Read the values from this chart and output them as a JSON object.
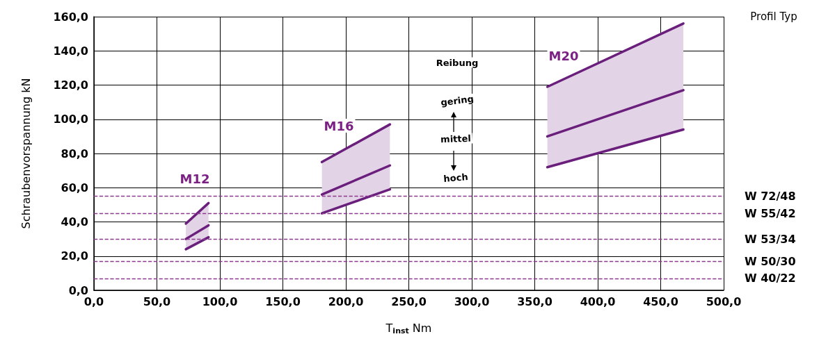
{
  "chart_data": {
    "type": "line",
    "xlabel": "T$_{inst}$ Nm",
    "ylabel": "Schraubenvorspannung kN",
    "series": [
      {
        "color": "#6b1f7c",
        "x": [
          73,
          91
        ],
        "values": [
          39,
          51
        ]
      },
      {
        "color": "#6b1f7c",
        "x": [
          73,
          91
        ],
        "values": [
          30,
          38
        ],
        "lower": [
          24,
          31
        ],
        "upper": [
          39,
          51
        ]
      },
      {
        "color": "#6b1f7c",
        "x": [
          73,
          91
        ],
        "values": [
          24,
          31
        ]
      },
      {
        "color": "#6b1f7c",
        "x": [
          181,
          235
        ],
        "values": [
          75,
          97
        ]
      },
      {
        "color": "#6b1f7c",
        "x": [
          181,
          235
        ],
        "values": [
          56,
          73
        ],
        "lower": [
          45,
          59
        ],
        "upper": [
          75,
          97
        ]
      },
      {
        "color": "#6b1f7c",
        "x": [
          181,
          235
        ],
        "values": [
          45,
          59
        ]
      },
      {
        "color": "#6b1f7c",
        "x": [
          360,
          468
        ],
        "values": [
          119,
          156
        ]
      },
      {
        "color": "#6b1f7c",
        "x": [
          360,
          468
        ],
        "values": [
          90,
          117
        ],
        "lower": [
          72,
          94
        ],
        "upper": [
          119,
          156
        ]
      },
      {
        "color": "#6b1f7c",
        "x": [
          360,
          468
        ],
        "values": [
          72,
          94
        ]
      }
    ],
    "xlim": [
      0,
      500
    ],
    "xticks": [
      {
        "value": 0,
        "label": "0,0"
      },
      {
        "value": 50,
        "label": "50,0"
      },
      {
        "value": 100,
        "label": "100,0"
      },
      {
        "value": 150,
        "label": "150,0"
      },
      {
        "value": 200,
        "label": "200,0"
      },
      {
        "value": 250,
        "label": "250,0"
      },
      {
        "value": 300,
        "label": "300,0"
      },
      {
        "value": 350,
        "label": "350,0"
      },
      {
        "value": 400,
        "label": "400,0"
      },
      {
        "value": 450,
        "label": "450,0"
      },
      {
        "value": 500,
        "label": "500,0"
      }
    ],
    "ylim": [
      0,
      160
    ],
    "yticks": [
      {
        "value": 0,
        "label": "0,0"
      },
      {
        "value": 20,
        "label": "20,0"
      },
      {
        "value": 40,
        "label": "40,0"
      },
      {
        "value": 60,
        "label": "60,0"
      },
      {
        "value": 80,
        "label": "80,0"
      },
      {
        "value": 100,
        "label": "100,0"
      },
      {
        "value": 120,
        "label": "120,0"
      },
      {
        "value": 140,
        "label": "140,0"
      },
      {
        "value": 160,
        "label": "160,0"
      }
    ],
    "grid": true,
    "marker": "none",
    "line_style": "solid",
    "ref_lines": [
      {
        "axis": "y",
        "value": 55,
        "label": "W 72/48",
        "color": "#8b3a8f",
        "line_style": "dashed"
      },
      {
        "axis": "y",
        "value": 45,
        "label": "W 55/42",
        "color": "#8b3a8f",
        "line_style": "dashed"
      },
      {
        "axis": "y",
        "value": 30,
        "label": "W 53/34",
        "color": "#8b3a8f",
        "line_style": "dashed"
      },
      {
        "axis": "y",
        "value": 17,
        "label": "W 50/30",
        "color": "#8b3a8f",
        "line_style": "dashed"
      },
      {
        "axis": "y",
        "value": 7,
        "label": "W 40/22",
        "color": "#8b3a8f",
        "line_style": "dashed"
      }
    ],
    "annotations": [
      "M12",
      "M16",
      "M20",
      "Reibung",
      "gering",
      "mittel",
      "hoch",
      "Profil Typ"
    ]
  }
}
